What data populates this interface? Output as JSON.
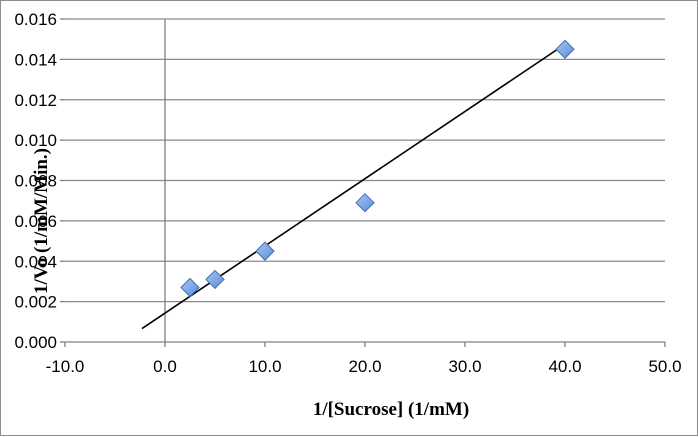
{
  "chart_data": {
    "type": "scatter",
    "title": "",
    "xlabel": "1/[Sucrose] (1/mM)",
    "ylabel": "1/Vo (1/mM/Min.)",
    "xlim": [
      -10,
      50
    ],
    "ylim": [
      0,
      0.016
    ],
    "x_ticks": [
      "-10.0",
      "0.0",
      "10.0",
      "20.0",
      "30.0",
      "40.0",
      "50.0"
    ],
    "y_ticks": [
      "0.000",
      "0.002",
      "0.004",
      "0.006",
      "0.008",
      "0.010",
      "0.012",
      "0.014",
      "0.016"
    ],
    "grid": "horizontal",
    "legend": "none",
    "series": [
      {
        "marker": "diamond",
        "color": "#6f9de8",
        "points": [
          {
            "x": 2.5,
            "y": 0.0027
          },
          {
            "x": 5.0,
            "y": 0.0031
          },
          {
            "x": 10.0,
            "y": 0.0045
          },
          {
            "x": 20.0,
            "y": 0.0069
          },
          {
            "x": 40.0,
            "y": 0.0145
          }
        ]
      }
    ],
    "trendline": {
      "type": "linear",
      "color": "#000000",
      "x_range": [
        -2.3,
        40.0
      ],
      "slope": 0.000333,
      "intercept": 0.00143
    }
  }
}
